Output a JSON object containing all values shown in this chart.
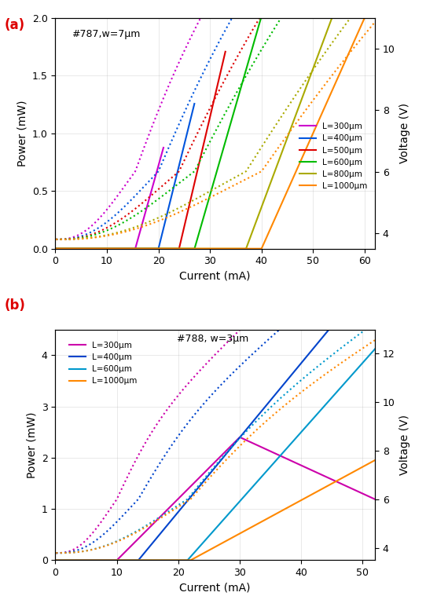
{
  "panel_a": {
    "title": "#787,w=7μm",
    "xlabel": "Current (mA)",
    "ylabel_left": "Power (mW)",
    "ylabel_right": "Voltage (V)",
    "xlim": [
      0,
      62
    ],
    "ylim_power": [
      0,
      2.0
    ],
    "ylim_voltage": [
      3.5,
      11
    ],
    "voltage_ticks": [
      4,
      6,
      8,
      10
    ],
    "series": [
      {
        "label": "L=300μm",
        "color": "#cc00cc",
        "ith": 15.5,
        "slope": 0.16,
        "imax": 21,
        "power_rolloff": false,
        "vth": 15.5,
        "v0": 3.8,
        "vslope": 0.23
      },
      {
        "label": "L=400μm",
        "color": "#0055dd",
        "ith": 20.0,
        "slope": 0.18,
        "imax": 27,
        "power_rolloff": false,
        "vth": 20.0,
        "v0": 3.8,
        "vslope": 0.22
      },
      {
        "label": "L=500μm",
        "color": "#dd0000",
        "ith": 24.0,
        "slope": 0.19,
        "imax": 33,
        "power_rolloff": false,
        "vth": 24.0,
        "v0": 3.8,
        "vslope": 0.21
      },
      {
        "label": "L=600μm",
        "color": "#00bb00",
        "ith": 27.0,
        "slope": 0.155,
        "imax": 42,
        "power_rolloff": false,
        "vth": 27.0,
        "v0": 3.8,
        "vslope": 0.2
      },
      {
        "label": "L=800μm",
        "color": "#aaaa00",
        "ith": 37.0,
        "slope": 0.12,
        "imax": 62,
        "power_rolloff": false,
        "vth": 37.0,
        "v0": 3.8,
        "vslope": 0.175
      },
      {
        "label": "L=1000μm",
        "color": "#ff8800",
        "ith": 40.0,
        "slope": 0.1,
        "imax": 62,
        "power_rolloff": false,
        "vth": 40.0,
        "v0": 3.8,
        "vslope": 0.155
      }
    ]
  },
  "panel_b": {
    "title": "#788, w=3μm",
    "xlabel": "Current (mA)",
    "ylabel_left": "Power (mW)",
    "ylabel_right": "Voltage (V)",
    "xlim": [
      0,
      52
    ],
    "ylim_power": [
      0,
      4.5
    ],
    "ylim_voltage": [
      3.5,
      13
    ],
    "voltage_ticks": [
      4,
      6,
      8,
      10,
      12
    ],
    "series": [
      {
        "label": "L=300μm",
        "color": "#cc00aa",
        "ith": 10.0,
        "slope": 0.12,
        "imax": 50,
        "peak_i": 30,
        "peak_p": 2.05,
        "end_p": 1.3,
        "rolloff": true,
        "vth": 10.0,
        "v0": 3.8,
        "vslope": 0.18
      },
      {
        "label": "L=400μm",
        "color": "#0044cc",
        "ith": 13.5,
        "slope": 0.145,
        "imax": 50,
        "rolloff": false,
        "vth": 13.5,
        "v0": 3.8,
        "vslope": 0.175
      },
      {
        "label": "L=600μm",
        "color": "#0099cc",
        "ith": 21.5,
        "slope": 0.135,
        "imax": 50,
        "rolloff": false,
        "vth": 21.5,
        "v0": 3.8,
        "vslope": 0.155
      },
      {
        "label": "L=1000μm",
        "color": "#ff8800",
        "ith": 22.0,
        "slope": 0.065,
        "imax": 50,
        "rolloff": false,
        "vth": 22.0,
        "v0": 3.8,
        "vslope": 0.135
      }
    ]
  },
  "label_a": "(a)",
  "label_b": "(b)",
  "label_color": "#dd0000"
}
